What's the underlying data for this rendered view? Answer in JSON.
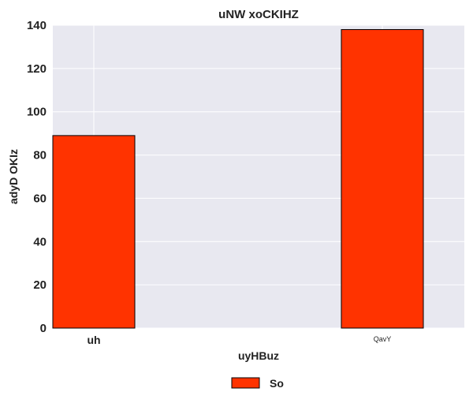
{
  "chart_data": {
    "type": "bar",
    "title": "uNW xoCKIHZ",
    "xlabel": "uyHBuz",
    "ylabel": "adyD OKIz",
    "categories": [
      "uh",
      "QavY"
    ],
    "series": [
      {
        "name": "So",
        "values": [
          89,
          138
        ],
        "color": "#ff3300"
      }
    ],
    "ylim": [
      0,
      140
    ],
    "yticks": [
      0,
      20,
      40,
      60,
      80,
      100,
      120,
      140
    ],
    "grid": true,
    "legend_position": "bottom-center",
    "plot_background": "#e8e8f0"
  }
}
